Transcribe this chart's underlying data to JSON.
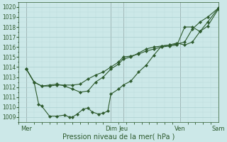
{
  "xlabel": "Pression niveau de la mer( hPa )",
  "bg_color": "#cce8e8",
  "grid_major_color": "#aad0d0",
  "grid_minor_color": "#bbdcdc",
  "line_color": "#2d5a2d",
  "ylim": [
    1008.5,
    1020.5
  ],
  "yticks": [
    1009,
    1010,
    1011,
    1012,
    1013,
    1014,
    1015,
    1016,
    1017,
    1018,
    1019,
    1020
  ],
  "xlim": [
    0,
    13
  ],
  "day_labels": [
    "Mer",
    "",
    "Dim",
    "Jeu",
    "",
    "Ven",
    "",
    "Sam"
  ],
  "day_positions": [
    0.5,
    3.5,
    6.0,
    6.8,
    9.5,
    10.5,
    12.0,
    13.0
  ],
  "vline_positions": [
    0.5,
    6.0,
    6.8,
    10.5,
    13.0
  ],
  "vline_color": "#8B7575",
  "s1_x": [
    0.5,
    1.0,
    1.5,
    2.0,
    2.5,
    3.0,
    3.5,
    4.0,
    4.5,
    5.0,
    5.5,
    6.0,
    6.5,
    6.8,
    7.3,
    7.8,
    8.3,
    8.8,
    9.3,
    9.8,
    10.3,
    10.8,
    11.3,
    11.8,
    12.3,
    13.0
  ],
  "s1_y": [
    1013.8,
    1012.5,
    1012.1,
    1012.1,
    1012.2,
    1012.2,
    1012.2,
    1012.3,
    1012.8,
    1013.2,
    1013.5,
    1014.0,
    1014.5,
    1015.0,
    1015.1,
    1015.3,
    1015.6,
    1015.8,
    1016.0,
    1016.1,
    1016.2,
    1018.0,
    1018.0,
    1017.55,
    1018.1,
    1019.8
  ],
  "s2_x": [
    0.5,
    1.0,
    1.5,
    2.0,
    2.5,
    3.0,
    3.5,
    4.0,
    4.5,
    5.0,
    5.5,
    6.0,
    6.5,
    6.8,
    7.3,
    7.8,
    8.3,
    8.8,
    9.3,
    9.8,
    10.3,
    10.8,
    11.3,
    11.8,
    12.3,
    13.0
  ],
  "s2_y": [
    1013.8,
    1012.5,
    1012.1,
    1012.2,
    1012.3,
    1012.1,
    1011.8,
    1011.5,
    1011.6,
    1012.5,
    1013.0,
    1013.8,
    1014.3,
    1014.8,
    1015.0,
    1015.4,
    1015.8,
    1016.0,
    1016.1,
    1016.2,
    1016.4,
    1016.2,
    1016.5,
    1017.55,
    1018.5,
    1019.9
  ],
  "s3_x": [
    0.5,
    1.0,
    1.3,
    1.5,
    2.0,
    2.5,
    3.0,
    3.3,
    3.5,
    3.8,
    4.2,
    4.5,
    4.8,
    5.2,
    5.5,
    5.8,
    6.0,
    6.5,
    6.8,
    7.3,
    7.8,
    8.3,
    8.8,
    9.3,
    9.8,
    10.3,
    10.8,
    11.3,
    11.8,
    12.3,
    13.0
  ],
  "s3_y": [
    1013.8,
    1012.5,
    1010.3,
    1010.1,
    1009.1,
    1009.1,
    1009.2,
    1009.0,
    1009.0,
    1009.3,
    1009.8,
    1009.9,
    1009.5,
    1009.3,
    1009.4,
    1009.6,
    1011.3,
    1011.8,
    1012.2,
    1012.6,
    1013.5,
    1014.2,
    1015.2,
    1016.1,
    1016.2,
    1016.3,
    1016.5,
    1017.8,
    1018.5,
    1019.0,
    1019.9
  ]
}
